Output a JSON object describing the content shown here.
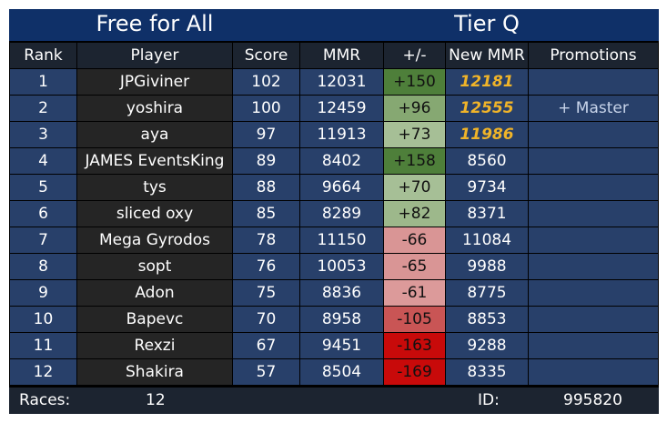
{
  "banner": {
    "left_title": "Free for All",
    "right_title": "Tier Q"
  },
  "headers": [
    "Rank",
    "Player",
    "Score",
    "MMR",
    "+/-",
    "New MMR",
    "Promotions"
  ],
  "rows": [
    {
      "rank": "1",
      "player": "JPGiviner",
      "score": "102",
      "mmr": "12031",
      "delta": "+150",
      "new_mmr": "12181",
      "promotion": "",
      "highlight": true,
      "delta_color": "#4e7f3a"
    },
    {
      "rank": "2",
      "player": "yoshira",
      "score": "100",
      "mmr": "12459",
      "delta": "+96",
      "new_mmr": "12555",
      "promotion": "+ Master",
      "highlight": true,
      "delta_color": "#86a872"
    },
    {
      "rank": "3",
      "player": "aya",
      "score": "97",
      "mmr": "11913",
      "delta": "+73",
      "new_mmr": "11986",
      "promotion": "",
      "highlight": true,
      "delta_color": "#a6bf96"
    },
    {
      "rank": "4",
      "player": "JAMES EventsKing",
      "score": "89",
      "mmr": "8402",
      "delta": "+158",
      "new_mmr": "8560",
      "promotion": "",
      "highlight": false,
      "delta_color": "#4e7f3a"
    },
    {
      "rank": "5",
      "player": "tys",
      "score": "88",
      "mmr": "9664",
      "delta": "+70",
      "new_mmr": "9734",
      "promotion": "",
      "highlight": false,
      "delta_color": "#a6bf96"
    },
    {
      "rank": "6",
      "player": "sliced oxy",
      "score": "85",
      "mmr": "8289",
      "delta": "+82",
      "new_mmr": "8371",
      "promotion": "",
      "highlight": false,
      "delta_color": "#9db88b"
    },
    {
      "rank": "7",
      "player": "Mega Gyrodos",
      "score": "78",
      "mmr": "11150",
      "delta": "-66",
      "new_mmr": "11084",
      "promotion": "",
      "highlight": false,
      "delta_color": "#d99595"
    },
    {
      "rank": "8",
      "player": "sopt",
      "score": "76",
      "mmr": "10053",
      "delta": "-65",
      "new_mmr": "9988",
      "promotion": "",
      "highlight": false,
      "delta_color": "#d99595"
    },
    {
      "rank": "9",
      "player": "Adon",
      "score": "75",
      "mmr": "8836",
      "delta": "-61",
      "new_mmr": "8775",
      "promotion": "",
      "highlight": false,
      "delta_color": "#dc9a9a"
    },
    {
      "rank": "10",
      "player": "Bapevc",
      "score": "70",
      "mmr": "8958",
      "delta": "-105",
      "new_mmr": "8853",
      "promotion": "",
      "highlight": false,
      "delta_color": "#c95555"
    },
    {
      "rank": "11",
      "player": "Rexzi",
      "score": "67",
      "mmr": "9451",
      "delta": "-163",
      "new_mmr": "9288",
      "promotion": "",
      "highlight": false,
      "delta_color": "#c80a0a"
    },
    {
      "rank": "12",
      "player": "Shakira",
      "score": "57",
      "mmr": "8504",
      "delta": "-169",
      "new_mmr": "8335",
      "promotion": "",
      "highlight": false,
      "delta_color": "#c80a0a"
    }
  ],
  "footer": {
    "races_label": "Races:",
    "races_value": "12",
    "id_label": "ID:",
    "id_value": "995820"
  }
}
